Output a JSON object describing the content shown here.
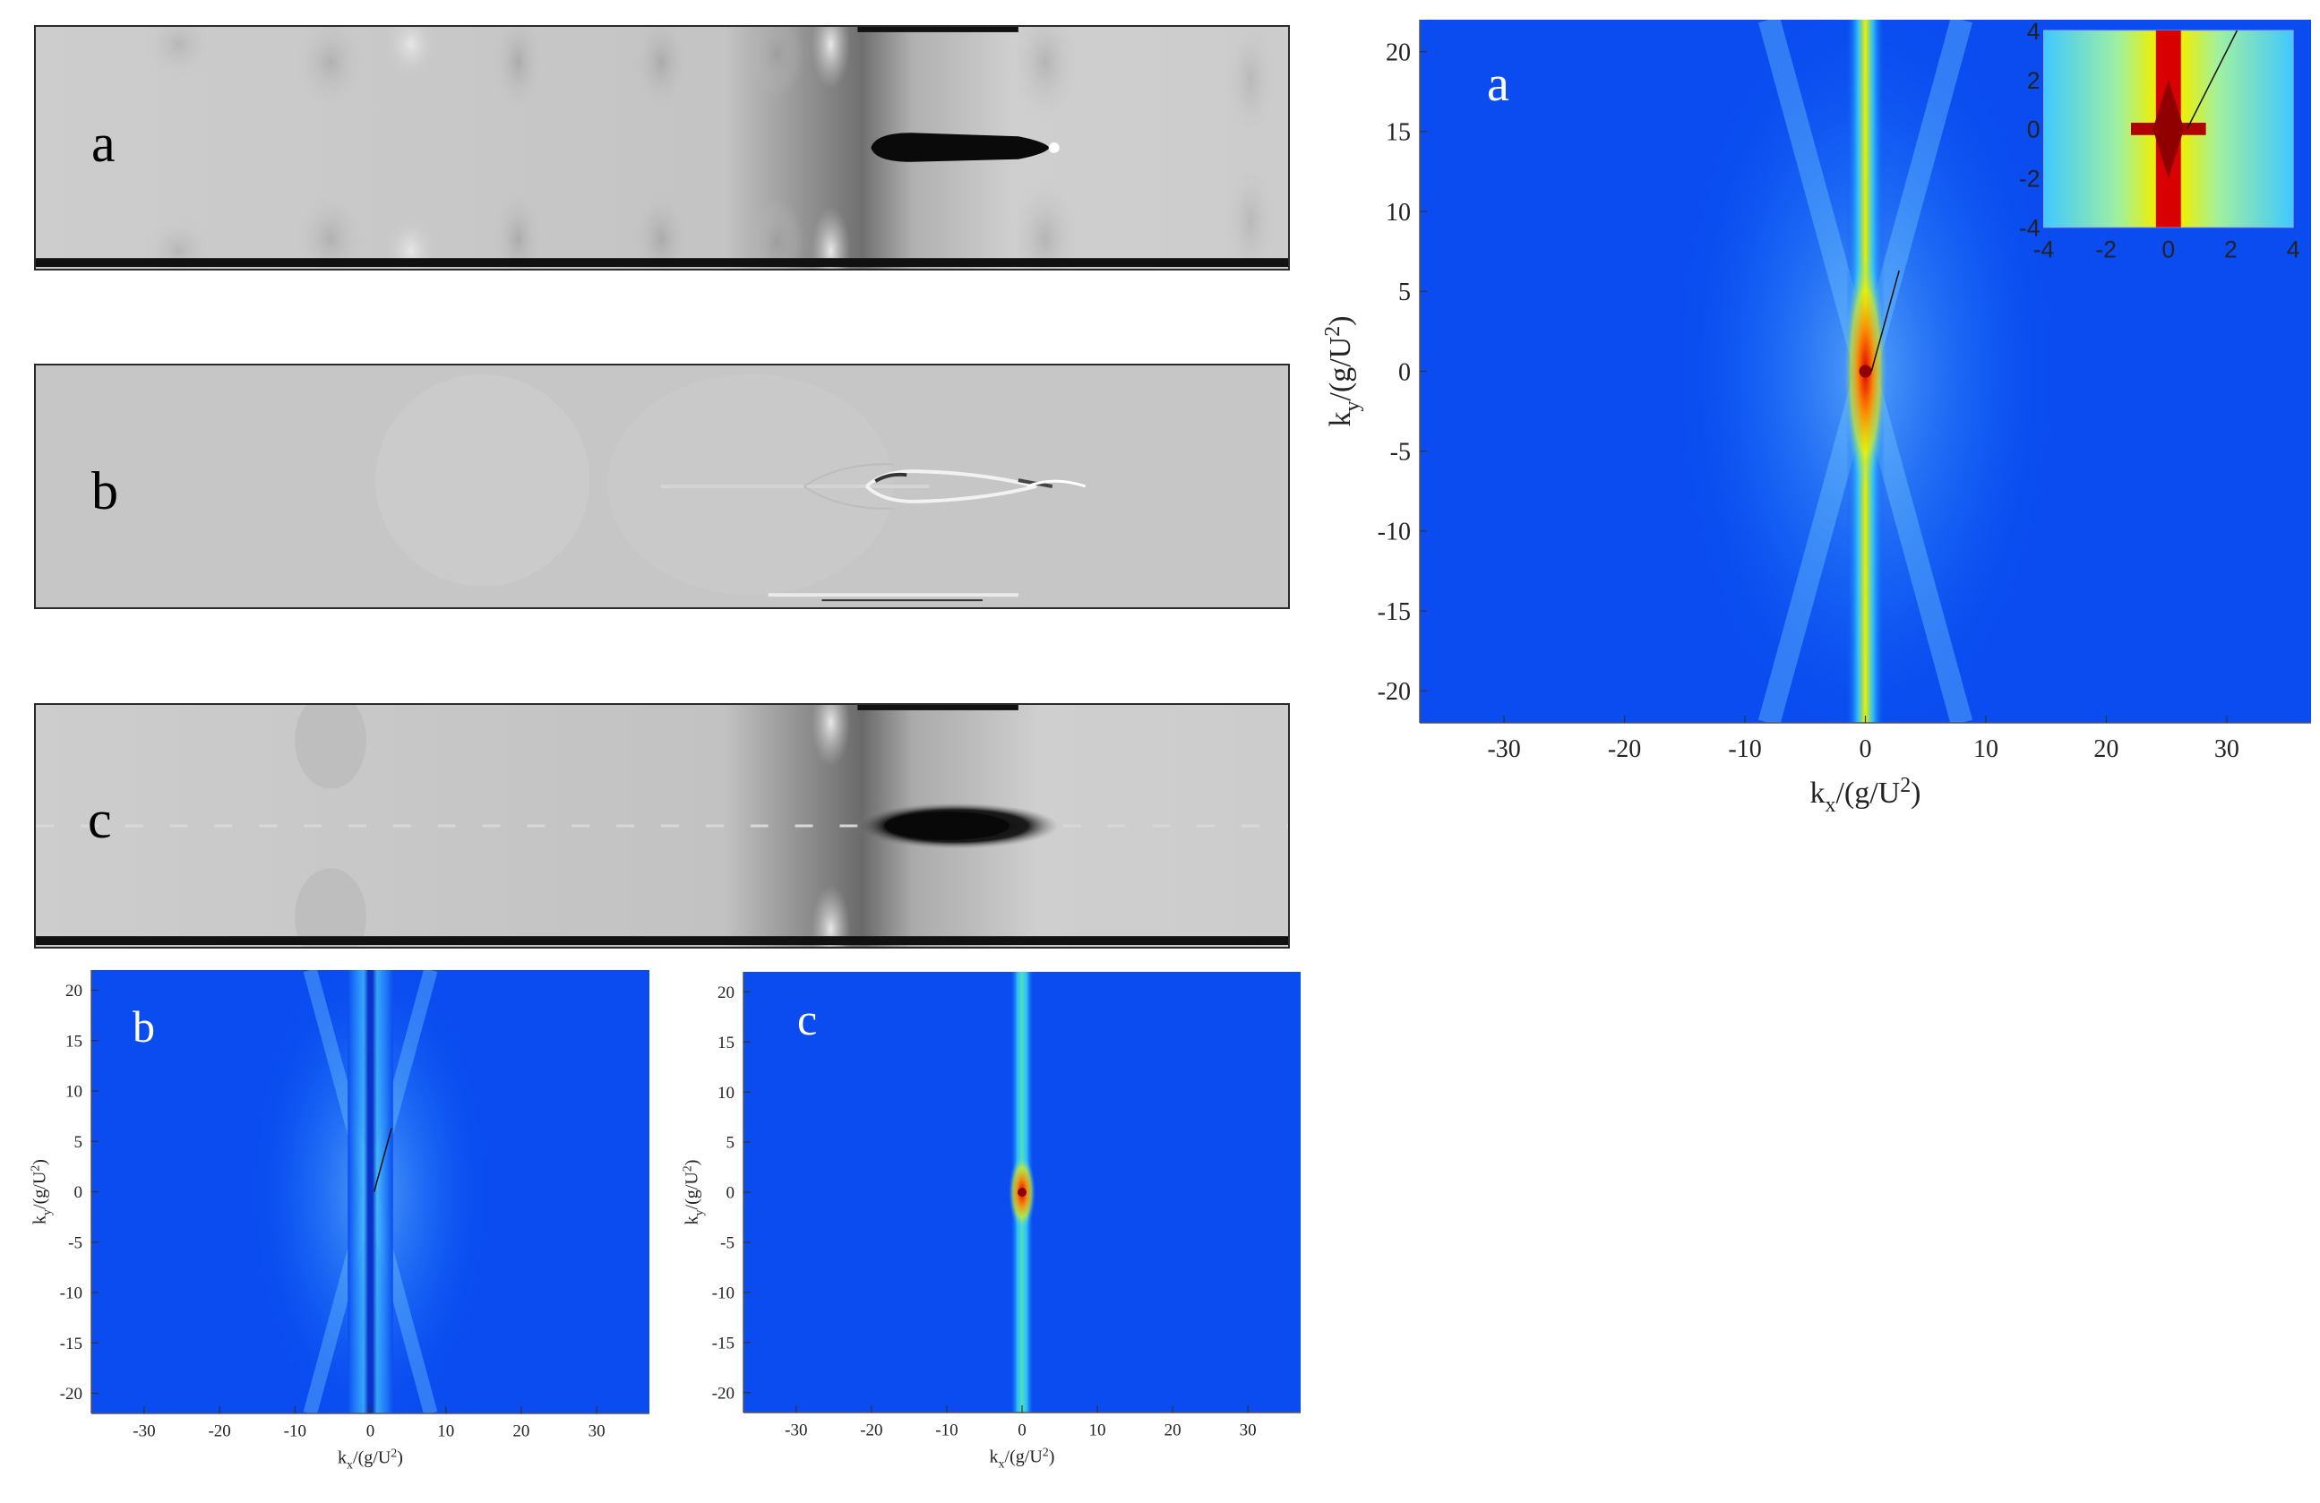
{
  "flow_panels": [
    {
      "id": "a",
      "label": "a"
    },
    {
      "id": "b",
      "label": "b"
    },
    {
      "id": "c",
      "label": "c"
    }
  ],
  "spectrum_panels": [
    {
      "id": "a",
      "label": "a",
      "xlabel_main": "k",
      "xlabel_sub": "x",
      "xlabel_rest": "/(g/U",
      "ylabel_main": "k",
      "ylabel_sub": "y",
      "ylabel_rest": "/(g/U"
    },
    {
      "id": "b",
      "label": "b",
      "xlabel_main": "k",
      "xlabel_sub": "x",
      "xlabel_rest": "/(g/U",
      "ylabel_main": "k",
      "ylabel_sub": "y",
      "ylabel_rest": "/(g/U"
    },
    {
      "id": "c",
      "label": "c",
      "xlabel_main": "k",
      "xlabel_sub": "x",
      "xlabel_rest": "/(g/U",
      "ylabel_main": "k",
      "ylabel_sub": "y",
      "ylabel_rest": "/(g/U"
    }
  ],
  "chart_data": [
    {
      "type": "heatmap",
      "panel": "a",
      "xlabel": "kx/(g/U2)",
      "ylabel": "ky/(g/U2)",
      "xlim": [
        -37,
        37
      ],
      "ylim": [
        -22,
        22
      ],
      "xticks": [
        -30,
        -20,
        -10,
        0,
        10,
        20,
        30
      ],
      "yticks": [
        20,
        15,
        10,
        5,
        0,
        -5,
        -10,
        -15,
        -20
      ],
      "colors": {
        "background": "#0a4cf0",
        "ridge": "#e8f000",
        "core": "#e00000"
      },
      "inset": {
        "xlim": [
          -4,
          4
        ],
        "ylim": [
          -4,
          4
        ],
        "xticks": [
          -4,
          -2,
          0,
          2,
          4
        ],
        "yticks": [
          4,
          2,
          0,
          -2,
          -4
        ]
      }
    },
    {
      "type": "heatmap",
      "panel": "b",
      "xlabel": "kx/(g/U2)",
      "ylabel": "ky/(g/U2)",
      "xlim": [
        -37,
        37
      ],
      "ylim": [
        -22,
        22
      ],
      "xticks": [
        -30,
        -20,
        -10,
        0,
        10,
        20,
        30
      ],
      "yticks": [
        20,
        15,
        10,
        5,
        0,
        -5,
        -10,
        -15,
        -20
      ],
      "colors": {
        "background": "#0a4cf0",
        "ridge": "#0a3ad0",
        "wedge": "#60d8ff"
      }
    },
    {
      "type": "heatmap",
      "panel": "c",
      "xlabel": "kx/(g/U2)",
      "ylabel": "ky/(g/U2)",
      "xlim": [
        -37,
        37
      ],
      "ylim": [
        -22,
        22
      ],
      "xticks": [
        -30,
        -20,
        -10,
        0,
        10,
        20,
        30
      ],
      "yticks": [
        20,
        15,
        10,
        5,
        0,
        -5,
        -10,
        -15,
        -20
      ],
      "colors": {
        "background": "#0a4cf0",
        "ridge": "#50e0c0",
        "core": "#e00000"
      }
    }
  ]
}
